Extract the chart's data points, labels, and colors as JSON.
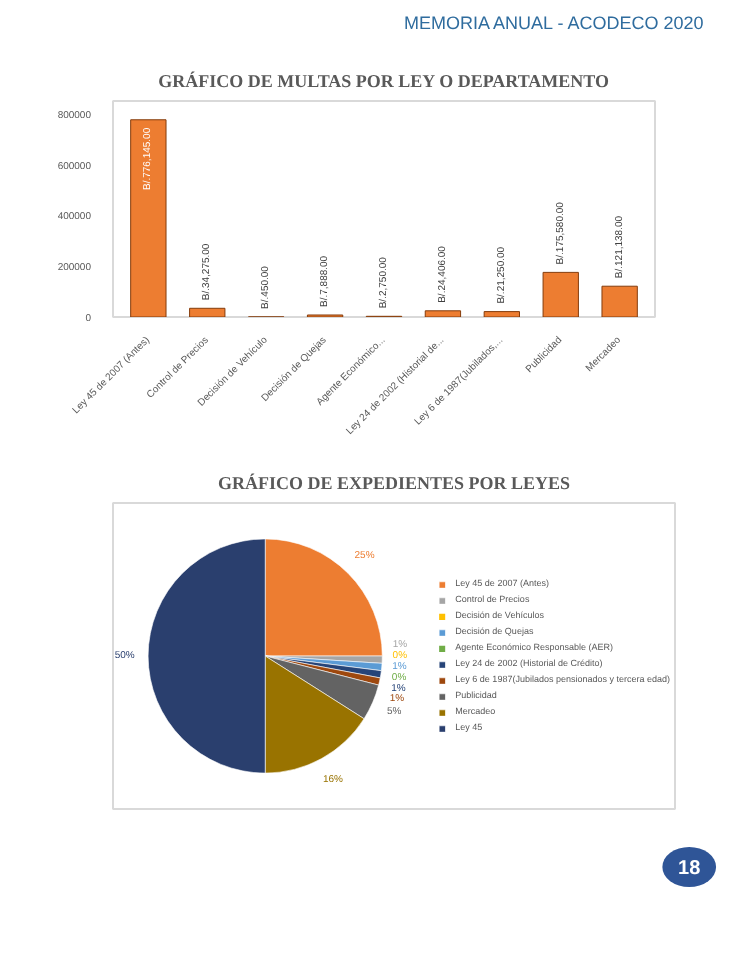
{
  "chart_data": [
    {
      "type": "bar",
      "title": "GRÁFICO DE MULTAS POR LEY O DEPARTAMENTO",
      "annotations": [
        "MEMORIA ANUAL - ACODECO 2020"
      ],
      "categories": [
        "Ley 45 de 2007 (Antes)",
        "Control de Precios",
        "Decisión de Vehículo",
        "Decisión de Quejas",
        "Agente Económico...",
        "Ley 24 de 2002 (Historial de...",
        "Ley 6 de 1987(Jubilados,...",
        "Publicidad",
        "Mercadeo"
      ],
      "values": [
        776145,
        34275,
        450,
        7888,
        2750,
        24406,
        21250,
        175580,
        121138
      ],
      "value_labels": [
        "B/.776,145.00",
        "B/.34,275.00",
        "B/.450.00",
        "B/.7,888.00",
        "B/.2,750.00",
        "B/.24,406.00",
        "B/.21,250.00",
        "B/.175,580.00",
        "B/.121,138.00"
      ],
      "color": "#ed7d31",
      "ylim": [
        0,
        850000
      ],
      "yticks": [
        0,
        200000,
        400000,
        600000,
        800000
      ],
      "grid": false
    },
    {
      "type": "pie",
      "title": "GRÁFICO DE EXPEDIENTES POR LEYES",
      "annotations": [
        "18"
      ],
      "categories": [
        "Ley 45 de 2007 (Antes)",
        "Control de Precios",
        "Decisión de Vehículos",
        "Decisión de Quejas",
        "Agente Económico Responsable (AER)",
        "Ley 24 de 2002 (Historial de Crédito)",
        "Ley 6 de 1987(Jubilados pensionados y tercera edad)",
        "Publicidad",
        "Mercadeo",
        "Ley 45"
      ],
      "values": [
        25,
        1,
        0,
        1,
        0,
        1,
        1,
        5,
        16,
        50
      ],
      "value_labels": [
        "25%",
        "1%",
        "0%",
        "1%",
        "0%",
        "1%",
        "1%",
        "5%",
        "16%",
        "50%"
      ],
      "colors": [
        "#ed7d31",
        "#a5a5a5",
        "#ffc000",
        "#5b9bd5",
        "#70ad47",
        "#264478",
        "#9e480e",
        "#636363",
        "#997300",
        "#2a3f6e"
      ],
      "legend": "right"
    }
  ]
}
